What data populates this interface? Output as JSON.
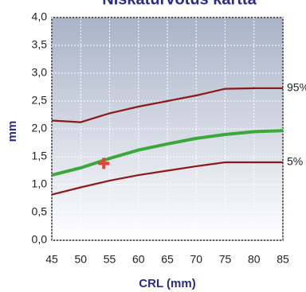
{
  "chart_data": {
    "type": "line",
    "title": "Niskaturvotus kartta",
    "xlabel": "CRL (mm)",
    "ylabel": "mm",
    "x": [
      45,
      50,
      55,
      60,
      65,
      70,
      75,
      80,
      85
    ],
    "series": [
      {
        "name": "95%",
        "color": "#8b1a1a",
        "values": [
          2.15,
          2.12,
          2.28,
          2.4,
          2.5,
          2.6,
          2.72,
          2.73,
          2.73
        ]
      },
      {
        "color": "#3aa83a",
        "values": [
          1.17,
          1.3,
          1.47,
          1.62,
          1.73,
          1.83,
          1.9,
          1.95,
          1.97
        ]
      },
      {
        "name": "5%",
        "color": "#8b1a1a",
        "values": [
          0.82,
          0.95,
          1.07,
          1.17,
          1.25,
          1.33,
          1.4,
          1.4,
          1.4
        ]
      }
    ],
    "point": {
      "x": 54,
      "y": 1.38,
      "color": "#e8403a"
    },
    "xlim": [
      45,
      85
    ],
    "xticks": [
      45,
      50,
      55,
      60,
      65,
      70,
      75,
      80,
      85
    ],
    "ylim": [
      0,
      4
    ],
    "yticks": [
      {
        "value": 0,
        "label": "0,0"
      },
      {
        "value": 0.5,
        "label": "0,5"
      },
      {
        "value": 1,
        "label": "1,0"
      },
      {
        "value": 1.5,
        "label": "1,5"
      },
      {
        "value": 2,
        "label": "2,0"
      },
      {
        "value": 2.5,
        "label": "2,5"
      },
      {
        "value": 3,
        "label": "3,0"
      },
      {
        "value": 3.5,
        "label": "3,5"
      },
      {
        "value": 4,
        "label": "4,0"
      }
    ],
    "grid": true
  }
}
